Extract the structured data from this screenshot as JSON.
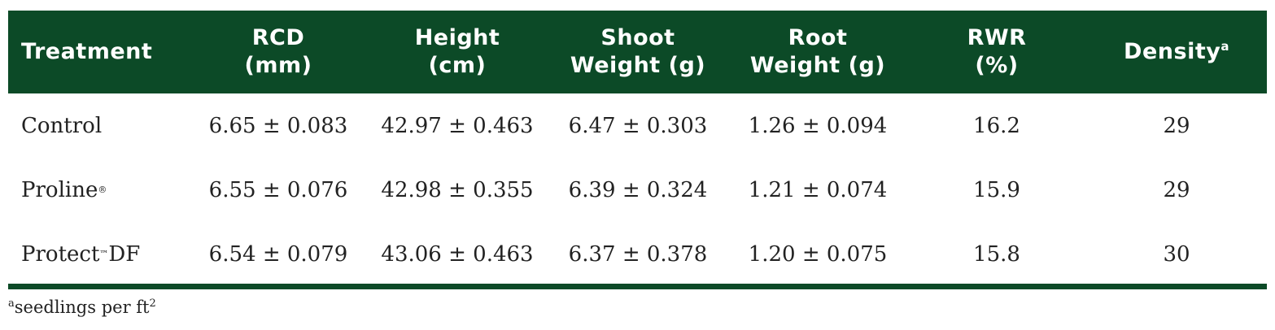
{
  "table": {
    "headers": [
      {
        "line1": "Treatment",
        "line2": "",
        "sup": ""
      },
      {
        "line1": "RCD",
        "line2": "(mm)",
        "sup": ""
      },
      {
        "line1": "Height",
        "line2": "(cm)",
        "sup": ""
      },
      {
        "line1": "Shoot",
        "line2": "Weight (g)",
        "sup": ""
      },
      {
        "line1": "Root",
        "line2": "Weight (g)",
        "sup": ""
      },
      {
        "line1": "RWR",
        "line2": "(%)",
        "sup": ""
      },
      {
        "line1": "Density",
        "line2": "",
        "sup": "a"
      }
    ],
    "rows": [
      {
        "treatment": "Control",
        "treatment_mark": "",
        "treatment_suffix": "",
        "rcd": "6.65 ± 0.083",
        "height": "42.97 ± 0.463",
        "shoot_weight": "6.47 ± 0.303",
        "root_weight": "1.26 ± 0.094",
        "rwr": "16.2",
        "density": "29"
      },
      {
        "treatment": "Proline",
        "treatment_mark": "®",
        "treatment_suffix": "",
        "rcd": "6.55 ± 0.076",
        "height": "42.98 ± 0.355",
        "shoot_weight": "6.39 ± 0.324",
        "root_weight": "1.21 ± 0.074",
        "rwr": "15.9",
        "density": "29"
      },
      {
        "treatment": "Protect",
        "treatment_mark": "™",
        "treatment_suffix": "DF",
        "rcd": "6.54 ± 0.079",
        "height": "43.06 ± 0.463",
        "shoot_weight": "6.37 ± 0.378",
        "root_weight": "1.20 ± 0.075",
        "rwr": "15.8",
        "density": "30"
      }
    ]
  },
  "footnote": {
    "marker": "a",
    "text": "seedlings per ft",
    "sup": "2"
  },
  "colors": {
    "header_bg": "#0c4a27",
    "header_text": "#ffffff",
    "body_text": "#222222"
  }
}
